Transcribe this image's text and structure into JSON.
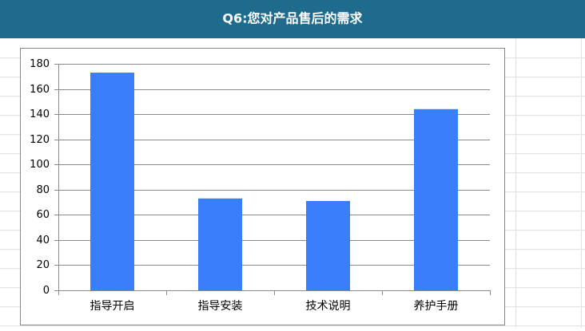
{
  "chart_data": {
    "type": "bar",
    "title": "Q6:您对产品售后的需求",
    "categories": [
      "指导开启",
      "指导安装",
      "技术说明",
      "养护手册"
    ],
    "values": [
      173,
      73,
      71,
      144
    ],
    "color": "#3a7efc",
    "ylim": [
      0,
      180
    ],
    "yticks": [
      0,
      20,
      40,
      60,
      80,
      100,
      120,
      140,
      160,
      180
    ],
    "grid": true
  }
}
